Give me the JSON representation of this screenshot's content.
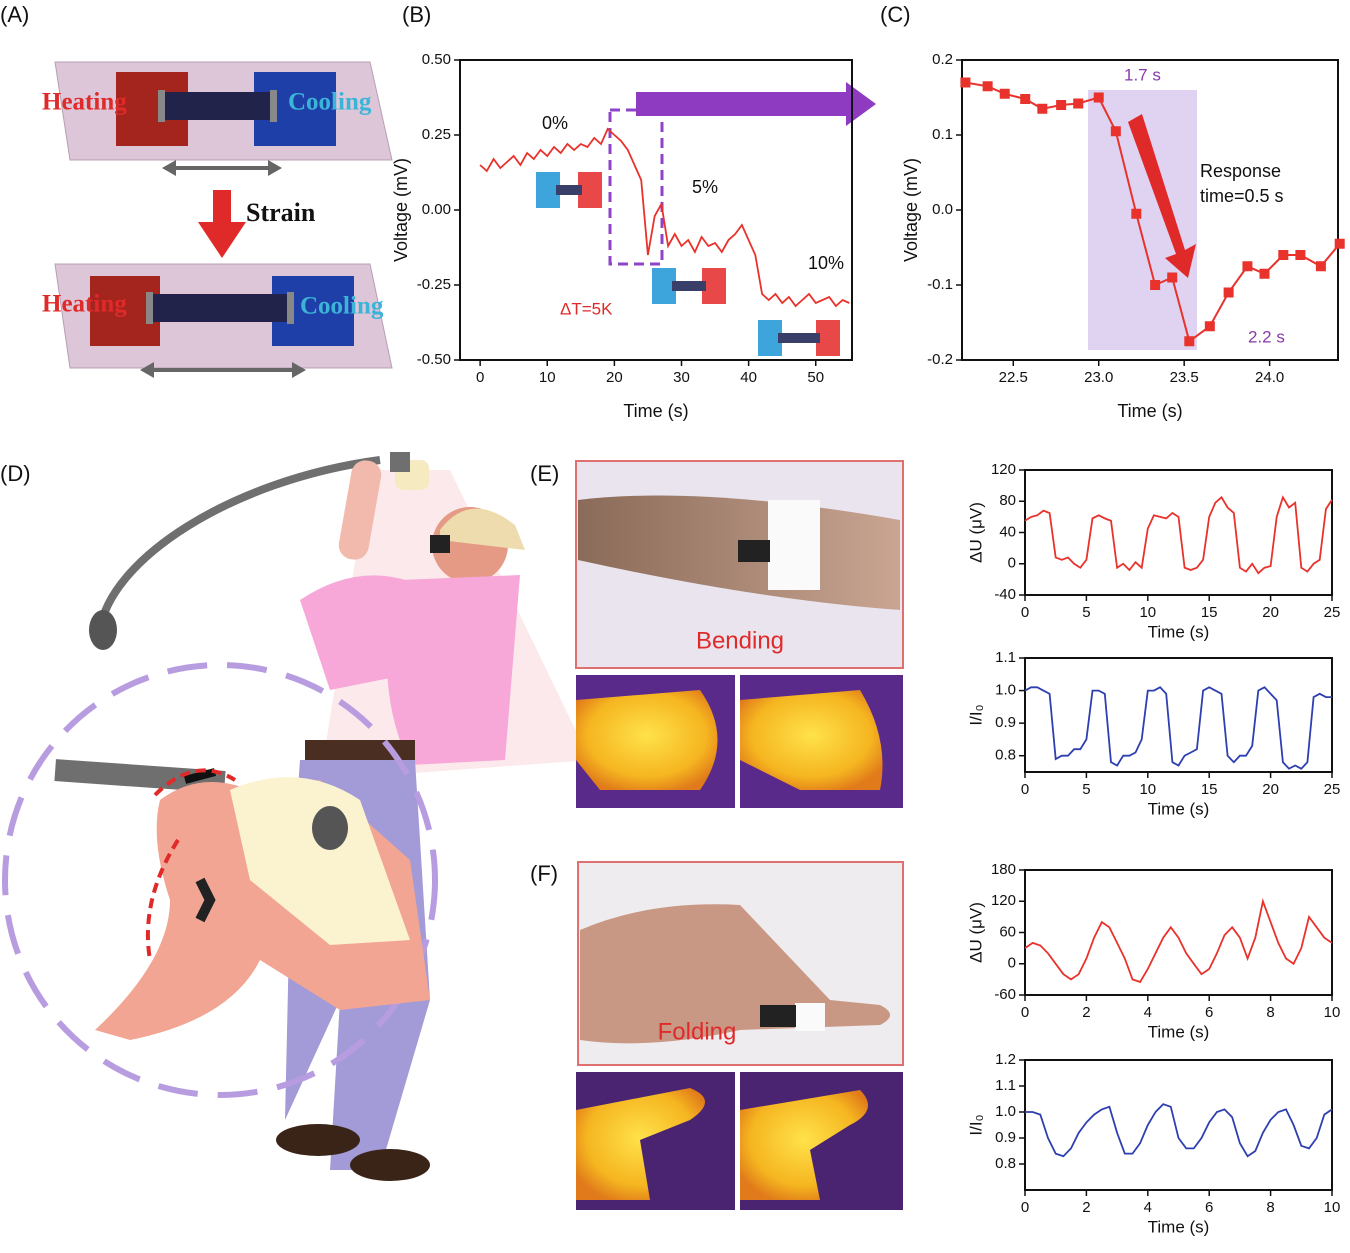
{
  "figure": {
    "panel_labels": [
      "(A)",
      "(B)",
      "(C)",
      "(D)",
      "(E)",
      "(F)"
    ],
    "schematic": {
      "heating": "Heating",
      "cooling": "Cooling",
      "strain": "Strain"
    },
    "photos": {
      "bending": "Bending",
      "folding": "Folding"
    }
  },
  "chart_data": [
    {
      "type": "line",
      "xlabel": "Time (s)",
      "ylabel": "Voltage (mV)",
      "color": "#e8322b",
      "annotations": [
        "0%",
        "5%",
        "10%",
        "ΔT=5K"
      ],
      "x": [
        0,
        1,
        2,
        3,
        4,
        5,
        6,
        7,
        8,
        9,
        10,
        11,
        12,
        13,
        14,
        15,
        16,
        17,
        18,
        19,
        20,
        21,
        22,
        23,
        24,
        25,
        26,
        27,
        28,
        29,
        30,
        31,
        32,
        33,
        34,
        35,
        36,
        37,
        38,
        39,
        40,
        41,
        42,
        43,
        44,
        45,
        46,
        47,
        48,
        49,
        50,
        51,
        52,
        53,
        54,
        55
      ],
      "values": [
        0.15,
        0.13,
        0.17,
        0.14,
        0.16,
        0.18,
        0.15,
        0.19,
        0.17,
        0.2,
        0.18,
        0.21,
        0.19,
        0.22,
        0.2,
        0.22,
        0.21,
        0.24,
        0.22,
        0.27,
        0.25,
        0.23,
        0.2,
        0.15,
        0.1,
        -0.15,
        -0.02,
        0.02,
        -0.12,
        -0.08,
        -0.12,
        -0.1,
        -0.14,
        -0.09,
        -0.12,
        -0.11,
        -0.14,
        -0.1,
        -0.08,
        -0.05,
        -0.1,
        -0.15,
        -0.28,
        -0.3,
        -0.28,
        -0.31,
        -0.29,
        -0.32,
        -0.3,
        -0.28,
        -0.31,
        -0.3,
        -0.29,
        -0.32,
        -0.3,
        -0.31
      ],
      "xlim": [
        -3,
        55.4
      ],
      "xticks": [
        0,
        10,
        20,
        30,
        40,
        50
      ],
      "ylim": [
        -0.5,
        0.5
      ],
      "yticks": [
        {
          "value": -0.5,
          "label": "-0.50"
        },
        {
          "value": -0.25,
          "label": "-0.25"
        },
        {
          "value": 0,
          "label": "0.00"
        },
        {
          "value": 0.25,
          "label": "0.25"
        },
        {
          "value": 0.5,
          "label": "0.50"
        }
      ]
    },
    {
      "type": "line",
      "markers": true,
      "xlabel": "Time (s)",
      "ylabel": "Voltage (mV)",
      "color": "#e8322b",
      "annotations": [
        "1.7 s",
        "2.2 s",
        "Response",
        "time=0.5 s"
      ],
      "x": [
        22.22,
        22.35,
        22.45,
        22.57,
        22.67,
        22.78,
        22.88,
        23.0,
        23.1,
        23.22,
        23.33,
        23.43,
        23.53,
        23.65,
        23.76,
        23.87,
        23.97,
        24.08,
        24.18,
        24.3,
        24.41
      ],
      "values": [
        0.17,
        0.165,
        0.155,
        0.148,
        0.135,
        0.14,
        0.142,
        0.15,
        0.105,
        -0.005,
        -0.1,
        -0.09,
        -0.175,
        -0.155,
        -0.11,
        -0.075,
        -0.085,
        -0.06,
        -0.06,
        -0.075,
        -0.045
      ],
      "xlim": [
        22.2,
        24.4
      ],
      "xticks": [
        22.5,
        {
          "value": 23,
          "label": "23.0"
        },
        23.5,
        {
          "value": 24,
          "label": "24.0"
        }
      ],
      "ylim": [
        -0.2,
        0.2
      ],
      "yticks": [
        -0.2,
        -0.1,
        {
          "value": 0,
          "label": "0.0"
        },
        0.1,
        0.2
      ]
    },
    {
      "type": "line",
      "xlabel": "Time (s)",
      "ylabel": "ΔU (μV)",
      "color": "#e8322b",
      "x": [
        0,
        0.5,
        1,
        1.5,
        2,
        2.5,
        3,
        3.5,
        4,
        4.5,
        5,
        5.5,
        6,
        6.5,
        7,
        7.5,
        8,
        8.5,
        9,
        9.5,
        10,
        10.5,
        11,
        11.5,
        12,
        12.5,
        13,
        13.5,
        14,
        14.5,
        15,
        15.5,
        16,
        16.5,
        17,
        17.5,
        18,
        18.5,
        19,
        19.5,
        20,
        20.5,
        21,
        21.5,
        22,
        22.5,
        23,
        23.5,
        24,
        24.5,
        25
      ],
      "values": [
        55,
        60,
        62,
        68,
        65,
        8,
        5,
        8,
        0,
        -5,
        5,
        58,
        62,
        58,
        55,
        -5,
        0,
        -8,
        2,
        -5,
        45,
        62,
        60,
        58,
        65,
        60,
        -5,
        -8,
        -5,
        5,
        60,
        78,
        85,
        72,
        65,
        -5,
        -10,
        0,
        -12,
        -5,
        -3,
        60,
        85,
        72,
        78,
        -5,
        -10,
        0,
        5,
        70,
        82
      ],
      "xlim": [
        0,
        25
      ],
      "xticks": [
        0,
        5,
        10,
        15,
        20,
        25
      ],
      "ylim": [
        -40,
        120
      ],
      "yticks": [
        -40,
        0,
        40,
        80,
        120
      ]
    },
    {
      "type": "line",
      "xlabel": "Time (s)",
      "ylabel": "I/I₀",
      "color": "#2e3fb0",
      "x": [
        0,
        0.5,
        1,
        1.5,
        2,
        2.5,
        3,
        3.5,
        4,
        4.5,
        5,
        5.5,
        6,
        6.5,
        7,
        7.5,
        8,
        8.5,
        9,
        9.5,
        10,
        10.5,
        11,
        11.5,
        12,
        12.5,
        13,
        13.5,
        14,
        14.5,
        15,
        15.5,
        16,
        16.5,
        17,
        17.5,
        18,
        18.5,
        19,
        19.5,
        20,
        20.5,
        21,
        21.5,
        22,
        22.5,
        23,
        23.5,
        24,
        24.5,
        25
      ],
      "values": [
        1.0,
        1.01,
        1.01,
        1.0,
        0.99,
        0.79,
        0.8,
        0.8,
        0.82,
        0.82,
        0.85,
        1.0,
        1.0,
        0.99,
        0.78,
        0.77,
        0.8,
        0.8,
        0.81,
        0.85,
        1.0,
        1.0,
        1.01,
        0.99,
        0.78,
        0.77,
        0.8,
        0.81,
        0.82,
        1.0,
        1.01,
        1.0,
        0.99,
        0.8,
        0.78,
        0.8,
        0.8,
        0.83,
        1.0,
        1.01,
        0.99,
        0.97,
        0.78,
        0.76,
        0.77,
        0.76,
        0.78,
        0.98,
        0.99,
        0.98,
        0.98
      ],
      "xlim": [
        0,
        25
      ],
      "xticks": [
        0,
        5,
        10,
        15,
        20,
        25
      ],
      "ylim": [
        0.75,
        1.1
      ],
      "yticks": [
        0.8,
        0.9,
        {
          "value": 1,
          "label": "1.0"
        },
        1.1
      ]
    },
    {
      "type": "line",
      "xlabel": "Time (s)",
      "ylabel": "ΔU (μV)",
      "color": "#e8322b",
      "x": [
        0,
        0.25,
        0.5,
        0.75,
        1,
        1.25,
        1.5,
        1.75,
        2,
        2.25,
        2.5,
        2.75,
        3,
        3.25,
        3.5,
        3.75,
        4,
        4.25,
        4.5,
        4.75,
        5,
        5.25,
        5.5,
        5.75,
        6,
        6.25,
        6.5,
        6.75,
        7,
        7.25,
        7.5,
        7.75,
        8,
        8.25,
        8.5,
        8.75,
        9,
        9.25,
        9.5,
        9.75,
        10
      ],
      "values": [
        30,
        40,
        35,
        20,
        0,
        -20,
        -30,
        -20,
        10,
        50,
        80,
        70,
        40,
        10,
        -30,
        -35,
        -10,
        20,
        50,
        70,
        50,
        20,
        0,
        -20,
        -10,
        20,
        55,
        70,
        50,
        10,
        50,
        120,
        80,
        40,
        10,
        0,
        30,
        90,
        70,
        50,
        40
      ],
      "xlim": [
        0,
        10
      ],
      "xticks": [
        0,
        2,
        4,
        6,
        8,
        10
      ],
      "ylim": [
        -60,
        180
      ],
      "yticks": [
        -60,
        0,
        60,
        120,
        180
      ]
    },
    {
      "type": "line",
      "xlabel": "Time (s)",
      "ylabel": "I/I₀",
      "color": "#2e3fb0",
      "x": [
        0,
        0.25,
        0.5,
        0.75,
        1,
        1.25,
        1.5,
        1.75,
        2,
        2.25,
        2.5,
        2.75,
        3,
        3.25,
        3.5,
        3.75,
        4,
        4.25,
        4.5,
        4.75,
        5,
        5.25,
        5.5,
        5.75,
        6,
        6.25,
        6.5,
        6.75,
        7,
        7.25,
        7.5,
        7.75,
        8,
        8.25,
        8.5,
        8.75,
        9,
        9.25,
        9.5,
        9.75,
        10
      ],
      "values": [
        1.0,
        1.0,
        0.99,
        0.9,
        0.84,
        0.83,
        0.86,
        0.92,
        0.96,
        0.99,
        1.01,
        1.02,
        0.92,
        0.84,
        0.84,
        0.88,
        0.95,
        1.0,
        1.03,
        1.02,
        0.9,
        0.86,
        0.86,
        0.9,
        0.96,
        1.0,
        1.01,
        0.98,
        0.88,
        0.83,
        0.85,
        0.92,
        0.97,
        1.0,
        1.01,
        0.95,
        0.87,
        0.86,
        0.9,
        0.99,
        1.01
      ],
      "xlim": [
        0,
        10
      ],
      "xticks": [
        0,
        2,
        4,
        6,
        8,
        10
      ],
      "ylim": [
        0.7,
        1.2
      ],
      "yticks": [
        0.8,
        0.9,
        {
          "value": 1,
          "label": "1.0"
        },
        1.1,
        1.2
      ]
    }
  ]
}
